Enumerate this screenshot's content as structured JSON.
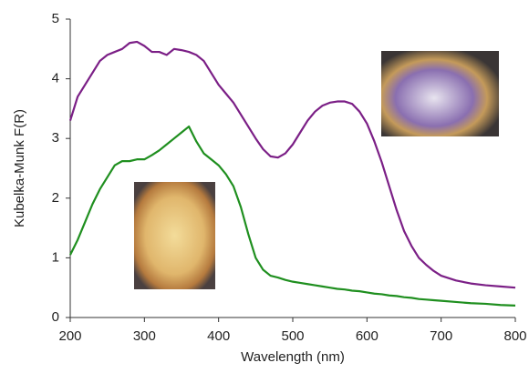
{
  "chart_data": {
    "type": "line",
    "xlabel": "Wavelength (nm)",
    "ylabel": "Kubelka-Munk F(R)",
    "x": [
      200,
      210,
      220,
      230,
      240,
      250,
      260,
      270,
      280,
      290,
      300,
      310,
      320,
      330,
      340,
      350,
      360,
      370,
      380,
      390,
      400,
      410,
      420,
      430,
      440,
      450,
      460,
      470,
      480,
      490,
      500,
      510,
      520,
      530,
      540,
      550,
      560,
      570,
      580,
      590,
      600,
      610,
      620,
      630,
      640,
      650,
      660,
      670,
      680,
      690,
      700,
      720,
      740,
      760,
      780,
      800
    ],
    "series": [
      {
        "color": "#7b1f86",
        "values": [
          3.3,
          3.7,
          3.9,
          4.1,
          4.3,
          4.4,
          4.45,
          4.5,
          4.6,
          4.62,
          4.55,
          4.45,
          4.45,
          4.4,
          4.5,
          4.48,
          4.45,
          4.4,
          4.3,
          4.1,
          3.9,
          3.75,
          3.6,
          3.4,
          3.2,
          3.0,
          2.82,
          2.7,
          2.68,
          2.75,
          2.9,
          3.1,
          3.3,
          3.45,
          3.55,
          3.6,
          3.62,
          3.62,
          3.58,
          3.45,
          3.25,
          2.95,
          2.6,
          2.2,
          1.8,
          1.45,
          1.2,
          1.0,
          0.88,
          0.78,
          0.7,
          0.62,
          0.57,
          0.54,
          0.52,
          0.5
        ]
      },
      {
        "color": "#1f8f1f",
        "values": [
          1.05,
          1.3,
          1.6,
          1.9,
          2.15,
          2.35,
          2.55,
          2.62,
          2.62,
          2.65,
          2.65,
          2.72,
          2.8,
          2.9,
          3.0,
          3.1,
          3.2,
          2.95,
          2.75,
          2.65,
          2.55,
          2.4,
          2.2,
          1.85,
          1.4,
          1.0,
          0.8,
          0.7,
          0.67,
          0.63,
          0.6,
          0.58,
          0.56,
          0.54,
          0.52,
          0.5,
          0.48,
          0.47,
          0.45,
          0.44,
          0.42,
          0.4,
          0.39,
          0.37,
          0.36,
          0.34,
          0.33,
          0.31,
          0.3,
          0.29,
          0.28,
          0.26,
          0.24,
          0.23,
          0.21,
          0.2
        ]
      }
    ],
    "xlim": [
      200,
      800
    ],
    "xticks": [
      200,
      300,
      400,
      500,
      600,
      700,
      800
    ],
    "ylim": [
      0,
      5
    ],
    "yticks": [
      0,
      1,
      2,
      3,
      4,
      5
    ],
    "grid": false
  }
}
